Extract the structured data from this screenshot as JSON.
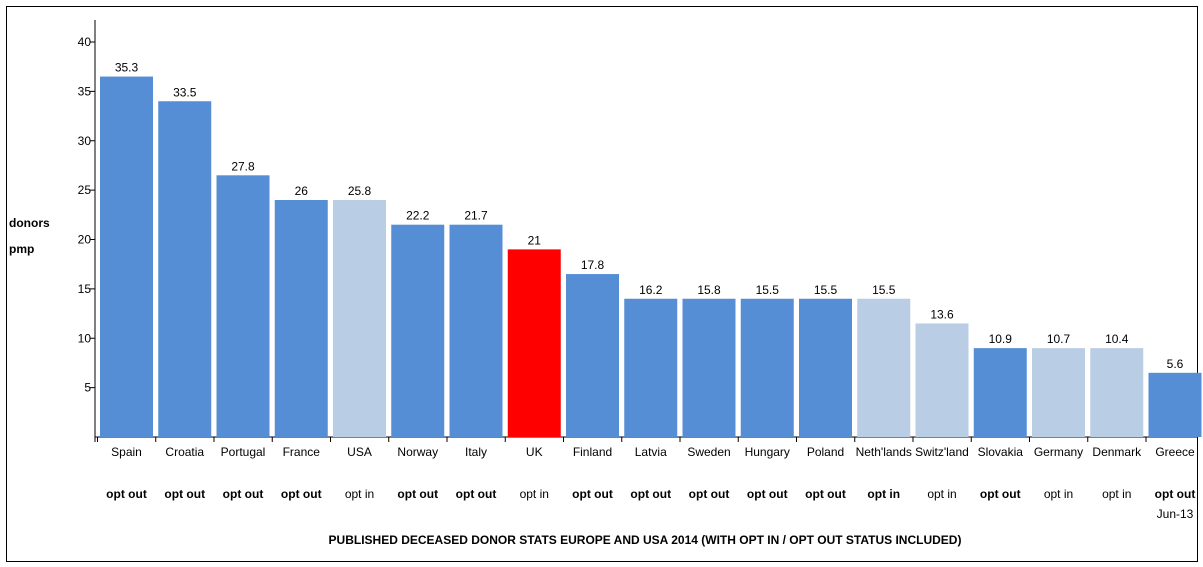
{
  "chart_data": {
    "type": "bar",
    "title": "PUBLISHED DECEASED DONOR STATS EUROPE AND USA 2014 (WITH OPT IN / OPT OUT STATUS INCLUDED)",
    "ylabel_lines": [
      "donors",
      "pmp"
    ],
    "xlabel": "",
    "ylim": [
      0,
      40
    ],
    "yticks": [
      5,
      10,
      15,
      20,
      25,
      30,
      35,
      40
    ],
    "grid": false,
    "categories": [
      "Spain",
      "Croatia",
      "Portugal",
      "France",
      "USA",
      "Norway",
      "Italy",
      "UK",
      "Finland",
      "Latvia",
      "Sweden",
      "Hungary",
      "Poland",
      "Neth'lands",
      "Switz'land",
      "Slovakia",
      "Germany",
      "Denmark",
      "Greece"
    ],
    "values": [
      35.3,
      33.5,
      27.8,
      26,
      25.8,
      22.2,
      21.7,
      21,
      17.8,
      16.2,
      15.8,
      15.5,
      15.5,
      15.5,
      13.6,
      10.9,
      10.7,
      10.4,
      5.6
    ],
    "value_labels": [
      "35.3",
      "33.5",
      "27.8",
      "26",
      "25.8",
      "22.2",
      "21.7",
      "21",
      "17.8",
      "16.2",
      "15.8",
      "15.5",
      "15.5",
      "15.5",
      "13.6",
      "10.9",
      "10.7",
      "10.4",
      "5.6"
    ],
    "bar_heights": [
      36.5,
      34,
      26.5,
      24,
      24,
      21.5,
      21.5,
      19,
      16.5,
      14,
      14,
      14,
      14,
      14,
      11.5,
      9,
      9,
      9,
      6.5
    ],
    "status": [
      "opt out",
      "opt out",
      "opt out",
      "opt out",
      "opt in",
      "opt out",
      "opt out",
      "opt in",
      "opt out",
      "opt out",
      "opt out",
      "opt out",
      "opt out",
      "opt in",
      "opt in",
      "opt out",
      "opt in",
      "opt in",
      "opt out"
    ],
    "status_bold": [
      true,
      true,
      true,
      true,
      false,
      true,
      true,
      false,
      true,
      true,
      true,
      true,
      true,
      true,
      false,
      true,
      false,
      false,
      true
    ],
    "notes": [
      "",
      "",
      "",
      "",
      "",
      "",
      "",
      "",
      "",
      "",
      "",
      "",
      "",
      "",
      "",
      "",
      "",
      "",
      "Jun-13"
    ],
    "bar_colors": [
      "#558ED5",
      "#558ED5",
      "#558ED5",
      "#558ED5",
      "#B9CDE5",
      "#558ED5",
      "#558ED5",
      "#FF0000",
      "#558ED5",
      "#558ED5",
      "#558ED5",
      "#558ED5",
      "#558ED5",
      "#B9CDE5",
      "#B9CDE5",
      "#558ED5",
      "#B9CDE5",
      "#B9CDE5",
      "#558ED5"
    ],
    "colors": {
      "opt_out": "#558ED5",
      "opt_in": "#B9CDE5",
      "highlight": "#FF0000"
    }
  }
}
